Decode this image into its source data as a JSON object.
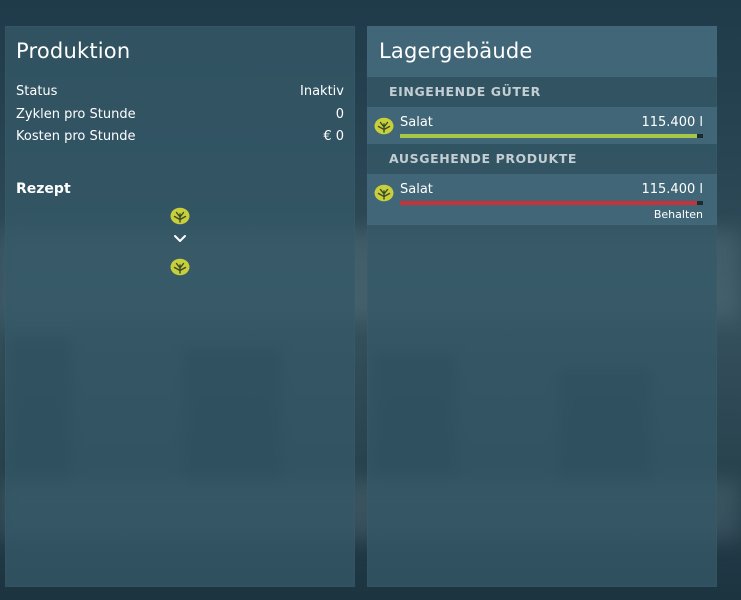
{
  "colors": {
    "incoming_bar": "#a6c84a",
    "outgoing_bar": "#c8333a",
    "icon_fill": "#c7cf3a"
  },
  "production": {
    "title": "Produktion",
    "rows": [
      {
        "label": "Status",
        "value": "Inaktiv"
      },
      {
        "label": "Zyklen pro Stunde",
        "value": "0"
      },
      {
        "label": "Kosten pro Stunde",
        "value": "€ 0"
      }
    ],
    "recipe": {
      "title": "Rezept",
      "input_icon": "lettuce-icon",
      "arrow_icon": "chevron-down-icon",
      "output_icon": "lettuce-icon"
    }
  },
  "storage": {
    "title": "Lagergebäude",
    "incoming": {
      "header": "EINGEHENDE GÜTER",
      "items": [
        {
          "icon": "lettuce-icon",
          "name": "Salat",
          "amount": "115.400 l",
          "fill_fraction": 0.98
        }
      ]
    },
    "outgoing": {
      "header": "AUSGEHENDE PRODUKTE",
      "items": [
        {
          "icon": "lettuce-icon",
          "name": "Salat",
          "amount": "115.400 l",
          "fill_fraction": 0.98,
          "mode": "Behalten"
        }
      ]
    }
  }
}
